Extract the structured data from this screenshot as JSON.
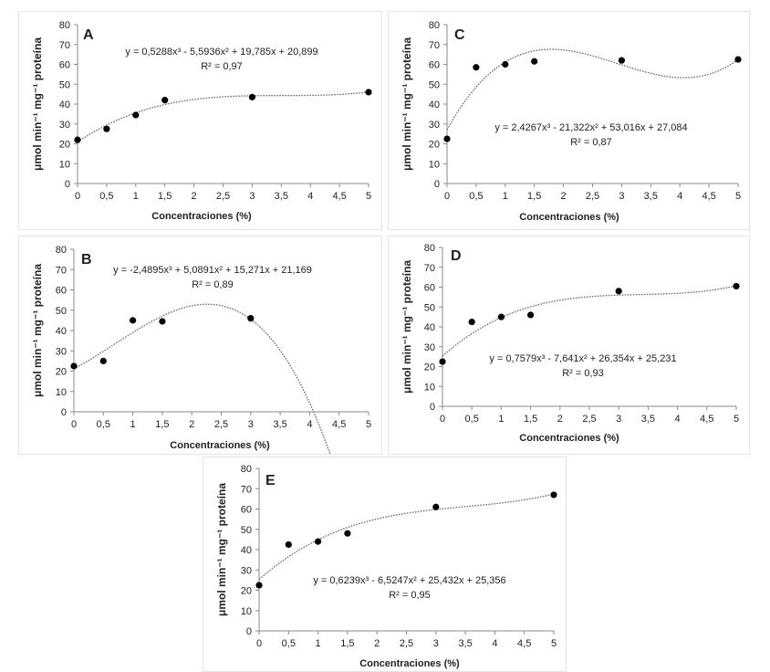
{
  "axes": {
    "xlabel": "Concentraciones (%)",
    "ylabel": "μmol min⁻¹ mg⁻¹ proteína",
    "xticks": [
      "0",
      "0,5",
      "1",
      "1,5",
      "2",
      "2,5",
      "3",
      "3,5",
      "4",
      "4,5",
      "5"
    ],
    "yticks": [
      "0",
      "10",
      "20",
      "30",
      "40",
      "50",
      "60",
      "70",
      "80"
    ]
  },
  "chart_data": [
    {
      "type": "scatter",
      "panel": "A",
      "title": "A",
      "xlabel": "Concentraciones (%)",
      "ylabel": "μmol min⁻¹ mg⁻¹ proteína",
      "xlim": [
        0,
        5
      ],
      "ylim": [
        0,
        80
      ],
      "x": [
        0,
        0.5,
        1,
        1.5,
        3,
        5
      ],
      "y": [
        22,
        27.5,
        34.5,
        42,
        43.5,
        46
      ],
      "trendline": {
        "type": "polynomial-3",
        "coefficients": [
          0.5288,
          -5.5936,
          19.785,
          20.899
        ]
      },
      "equation": "y = 0,5288x³ - 5,5936x² + 19,785x + 20,899",
      "r2": "R² = 0,97"
    },
    {
      "type": "scatter",
      "panel": "C",
      "title": "C",
      "xlabel": "Concentraciones (%)",
      "ylabel": "μmol min⁻¹ mg⁻¹ proteína",
      "xlim": [
        0,
        5
      ],
      "ylim": [
        0,
        80
      ],
      "x": [
        0,
        0.5,
        1,
        1.5,
        3,
        5
      ],
      "y": [
        22.5,
        58.5,
        60,
        61.5,
        62,
        62.5
      ],
      "trendline": {
        "type": "polynomial-3",
        "coefficients": [
          2.4267,
          -21.322,
          53.016,
          27.084
        ]
      },
      "equation": "y = 2,4267x³ - 21,322x² + 53,016x + 27,084",
      "r2": "R² = 0,87"
    },
    {
      "type": "scatter",
      "panel": "B",
      "title": "B",
      "xlabel": "Concentraciones (%)",
      "ylabel": "μmol min⁻¹ mg⁻¹ proteína",
      "xlim": [
        0,
        5
      ],
      "ylim": [
        0,
        80
      ],
      "x": [
        0,
        0.5,
        1,
        1.5,
        3
      ],
      "y": [
        22.5,
        25,
        45,
        44.5,
        46
      ],
      "trendline": {
        "type": "polynomial-3",
        "coefficients": [
          -2.4895,
          5.0891,
          15.271,
          21.169
        ]
      },
      "equation": "y = -2,4895x³ + 5,0891x² + 15,271x + 21,169",
      "r2": "R² = 0,89"
    },
    {
      "type": "scatter",
      "panel": "D",
      "title": "D",
      "xlabel": "Concentraciones (%)",
      "ylabel": "μmol min⁻¹ mg⁻¹ proteína",
      "xlim": [
        0,
        5
      ],
      "ylim": [
        0,
        80
      ],
      "x": [
        0,
        0.5,
        1,
        1.5,
        3,
        5
      ],
      "y": [
        22.5,
        42.5,
        45,
        46,
        58,
        60.5
      ],
      "trendline": {
        "type": "polynomial-3",
        "coefficients": [
          0.7579,
          -7.641,
          26.354,
          25.231
        ]
      },
      "equation": "y = 0,7579x³ - 7,641x² + 26,354x + 25,231",
      "r2": "R² = 0,93"
    },
    {
      "type": "scatter",
      "panel": "E",
      "title": "E",
      "xlabel": "Concentraciones (%)",
      "ylabel": "μmol min⁻¹ mg⁻¹ proteína",
      "xlim": [
        0,
        5
      ],
      "ylim": [
        0,
        80
      ],
      "x": [
        0,
        0.5,
        1,
        1.5,
        3,
        5
      ],
      "y": [
        22.5,
        42.5,
        44,
        48,
        61,
        67
      ],
      "trendline": {
        "type": "polynomial-3",
        "coefficients": [
          0.6239,
          -6.5247,
          25.432,
          25.356
        ]
      },
      "equation": "y = 0,6239x³ - 6,5247x² + 25,432x + 25,356",
      "r2": "R² = 0,95"
    }
  ]
}
